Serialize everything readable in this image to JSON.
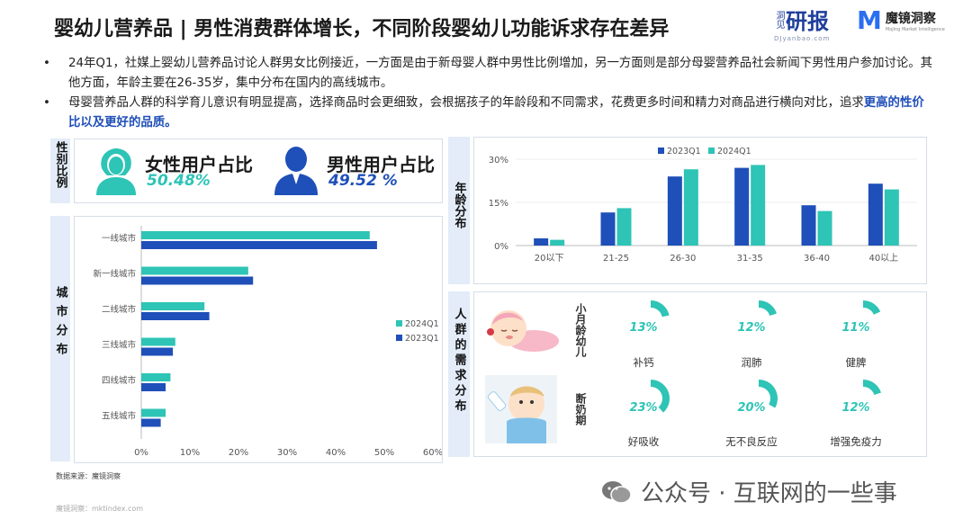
{
  "title": "婴幼儿营养品 | 男性消费群体增长，不同阶段婴幼儿功能诉求存在差异",
  "logos": {
    "brand1_small": "洞见",
    "brand1_big": "研报",
    "brand1_url": "DJyanbao.com",
    "brand2_mark": "M",
    "brand2_name": "魔镜洞察",
    "brand2_sub": "Mojing Market Intelligence"
  },
  "bullet_symbol": "•",
  "bullets": {
    "b1": "24年Q1，社媒上婴幼儿营养品讨论人群男女比例接近，一方面是由于新母婴人群中男性比例增加，另一方面则是部分母婴营养品社会新闻下男性用户参加讨论。其他方面，年龄主要在26-35岁，集中分布在国内的高线城市。",
    "b2_pre": "母婴营养品人群的科学育儿意识有明显提高，选择商品时会更细致，会根据孩子的年龄段和不同需求，花费更多时间和精力对商品进行横向对比，追求",
    "b2_hl": "更高的性价比以及更好的品质。"
  },
  "labels": {
    "sex": "性别比例",
    "city": "城市分布",
    "age": "年龄分布",
    "needs": "人群的需求分布"
  },
  "sex": {
    "female_label": "女性用户占比",
    "female_value": "50.48%",
    "male_label": "男性用户占比",
    "male_value": "49.52 %"
  },
  "needs": {
    "group1": "小月龄幼儿",
    "group2": "断奶期",
    "items": [
      {
        "value": "13%",
        "label": "补钙",
        "pct": 13
      },
      {
        "value": "12%",
        "label": "润肺",
        "pct": 12
      },
      {
        "value": "11%",
        "label": "健脾",
        "pct": 11
      },
      {
        "value": "23%",
        "label": "好吸收",
        "pct": 23
      },
      {
        "value": "20%",
        "label": "无不良反应",
        "pct": 20
      },
      {
        "value": "12%",
        "label": "增强免疫力",
        "pct": 12
      }
    ]
  },
  "source": "数据来源：魔镜洞察",
  "footer_url": "魔镜洞察：mktindex.com",
  "watermark": "公众号 · 互联网的一些事",
  "colors": {
    "teal": "#2ec4b6",
    "blue": "#1f4fb8",
    "label_bg": "#e3ecf8"
  },
  "chart_data": [
    {
      "type": "bar",
      "orientation": "horizontal",
      "categories": [
        "一线城市",
        "新一线城市",
        "二线城市",
        "三线城市",
        "四线城市",
        "五线城市"
      ],
      "series": [
        {
          "name": "2024Q1",
          "values": [
            47,
            22,
            13,
            7,
            6,
            5
          ]
        },
        {
          "name": "2023Q1",
          "values": [
            48.5,
            23,
            14,
            6.5,
            5,
            4
          ]
        }
      ],
      "xticks": [
        "0%",
        "10%",
        "20%",
        "30%",
        "40%",
        "50%",
        "60%"
      ],
      "xlim": [
        0,
        60
      ],
      "legend": "right"
    },
    {
      "type": "bar",
      "categories": [
        "20以下",
        "21-25",
        "26-30",
        "31-35",
        "36-40",
        "40以上"
      ],
      "series": [
        {
          "name": "2023Q1",
          "values": [
            2.5,
            11.5,
            24,
            27,
            14,
            21.5
          ]
        },
        {
          "name": "2024Q1",
          "values": [
            2,
            13,
            26.5,
            28,
            12,
            19.5
          ]
        }
      ],
      "yticks": [
        "0%",
        "15%",
        "30%"
      ],
      "ylim": [
        0,
        30
      ],
      "legend": "top"
    }
  ]
}
